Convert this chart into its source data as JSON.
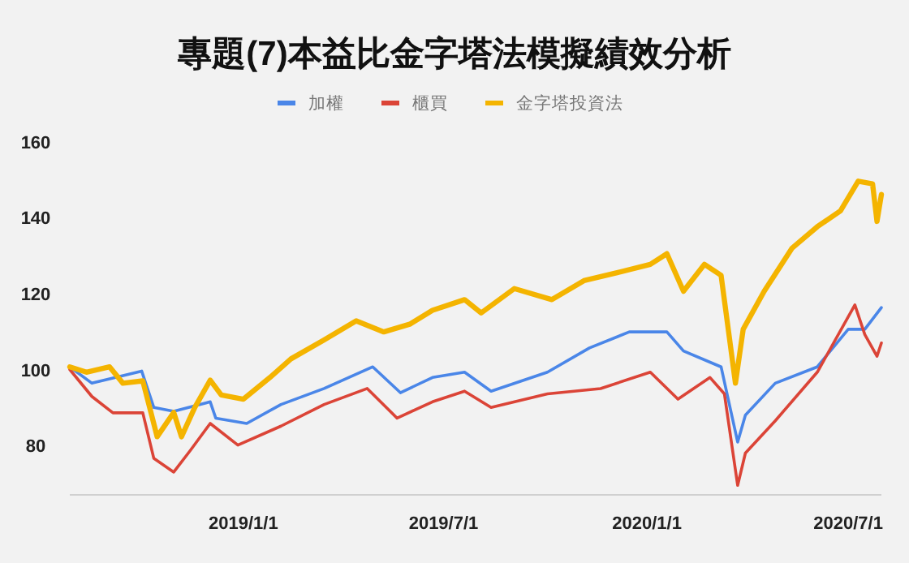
{
  "chart_data": {
    "type": "line",
    "title": "專題(7)本益比金字塔法模擬績效分析",
    "legend": "top",
    "xticks": [
      {
        "value": "2019-01-01",
        "label": "2019/1/1"
      },
      {
        "value": "2019-07-01",
        "label": "2019/7/1"
      },
      {
        "value": "2020-01-01",
        "label": "2020/1/1"
      },
      {
        "value": "2020-07-01",
        "label": "2020/7/1"
      }
    ],
    "xlim": [
      "2018-07-28",
      "2020-07-31"
    ],
    "ylim": [
      67,
      160
    ],
    "yticks": [
      80,
      100,
      120,
      140,
      160
    ],
    "series": [
      {
        "name": "加權",
        "color": "#4a86e8",
        "x": [
          "2018-07-28",
          "2018-08-17",
          "2018-10-01",
          "2018-10-12",
          "2018-10-30",
          "2018-12-02",
          "2018-12-07",
          "2019-01-04",
          "2019-02-04",
          "2019-03-15",
          "2019-04-28",
          "2019-05-23",
          "2019-06-21",
          "2019-07-20",
          "2019-08-13",
          "2019-10-03",
          "2019-11-10",
          "2019-12-16",
          "2020-01-19",
          "2020-02-03",
          "2020-03-08",
          "2020-03-23",
          "2020-03-30",
          "2020-04-26",
          "2020-06-03",
          "2020-07-01",
          "2020-07-16",
          "2020-07-31"
        ],
        "values": [
          100.7,
          96.4,
          99.6,
          90,
          89,
          91.5,
          87.2,
          85.8,
          90.8,
          95,
          100.7,
          93.9,
          97.9,
          99.3,
          94.3,
          99.3,
          105.7,
          109.9,
          109.9,
          104.9,
          100.7,
          80.9,
          88,
          96.4,
          100.7,
          110.6,
          110.6,
          116.3
        ]
      },
      {
        "name": "櫃買",
        "color": "#db4437",
        "x": [
          "2018-07-28",
          "2018-08-17",
          "2018-09-05",
          "2018-10-02",
          "2018-10-12",
          "2018-10-30",
          "2018-11-14",
          "2018-12-02",
          "2018-12-27",
          "2019-02-04",
          "2019-03-15",
          "2019-04-23",
          "2019-05-20",
          "2019-06-21",
          "2019-07-20",
          "2019-08-13",
          "2019-10-03",
          "2019-11-20",
          "2020-01-04",
          "2020-01-29",
          "2020-02-27",
          "2020-03-11",
          "2020-03-23",
          "2020-03-30",
          "2020-04-26",
          "2020-06-03",
          "2020-07-07",
          "2020-07-16",
          "2020-07-27",
          "2020-07-31"
        ],
        "values": [
          100,
          92.9,
          88.6,
          88.6,
          76.6,
          73,
          78.7,
          85.8,
          80.1,
          85.1,
          90.8,
          95,
          87.2,
          91.5,
          94.3,
          90,
          93.6,
          95,
          99.3,
          92.2,
          97.9,
          93.6,
          69.5,
          78,
          86.5,
          99.3,
          117,
          109.2,
          103.5,
          107
        ]
      },
      {
        "name": "金字塔投資法",
        "color": "#f4b400",
        "x": [
          "2018-07-28",
          "2018-08-12",
          "2018-09-02",
          "2018-09-14",
          "2018-10-02",
          "2018-10-10",
          "2018-10-15",
          "2018-10-30",
          "2018-11-06",
          "2018-11-18",
          "2018-12-02",
          "2018-12-12",
          "2019-01-01",
          "2019-01-25",
          "2019-02-13",
          "2019-03-15",
          "2019-04-13",
          "2019-05-08",
          "2019-06-01",
          "2019-06-21",
          "2019-07-20",
          "2019-08-04",
          "2019-09-03",
          "2019-10-07",
          "2019-11-05",
          "2019-12-05",
          "2020-01-04",
          "2020-01-19",
          "2020-02-03",
          "2020-02-22",
          "2020-03-08",
          "2020-03-21",
          "2020-03-28",
          "2020-04-16",
          "2020-05-11",
          "2020-06-03",
          "2020-06-24",
          "2020-07-10",
          "2020-07-23",
          "2020-07-27",
          "2020-07-31"
        ],
        "values": [
          100.7,
          99.3,
          100.7,
          96.4,
          97,
          88,
          82.3,
          88.7,
          82.3,
          90,
          97.2,
          93.3,
          92.2,
          97.9,
          102.8,
          107.8,
          112.8,
          109.9,
          112,
          115.6,
          118.4,
          114.9,
          121.3,
          118.4,
          123.4,
          125.5,
          127.7,
          130.5,
          120.6,
          127.7,
          124.8,
          96.4,
          110.6,
          120.6,
          131.9,
          137.6,
          141.8,
          149.6,
          148.9,
          139,
          146.1
        ]
      }
    ]
  }
}
